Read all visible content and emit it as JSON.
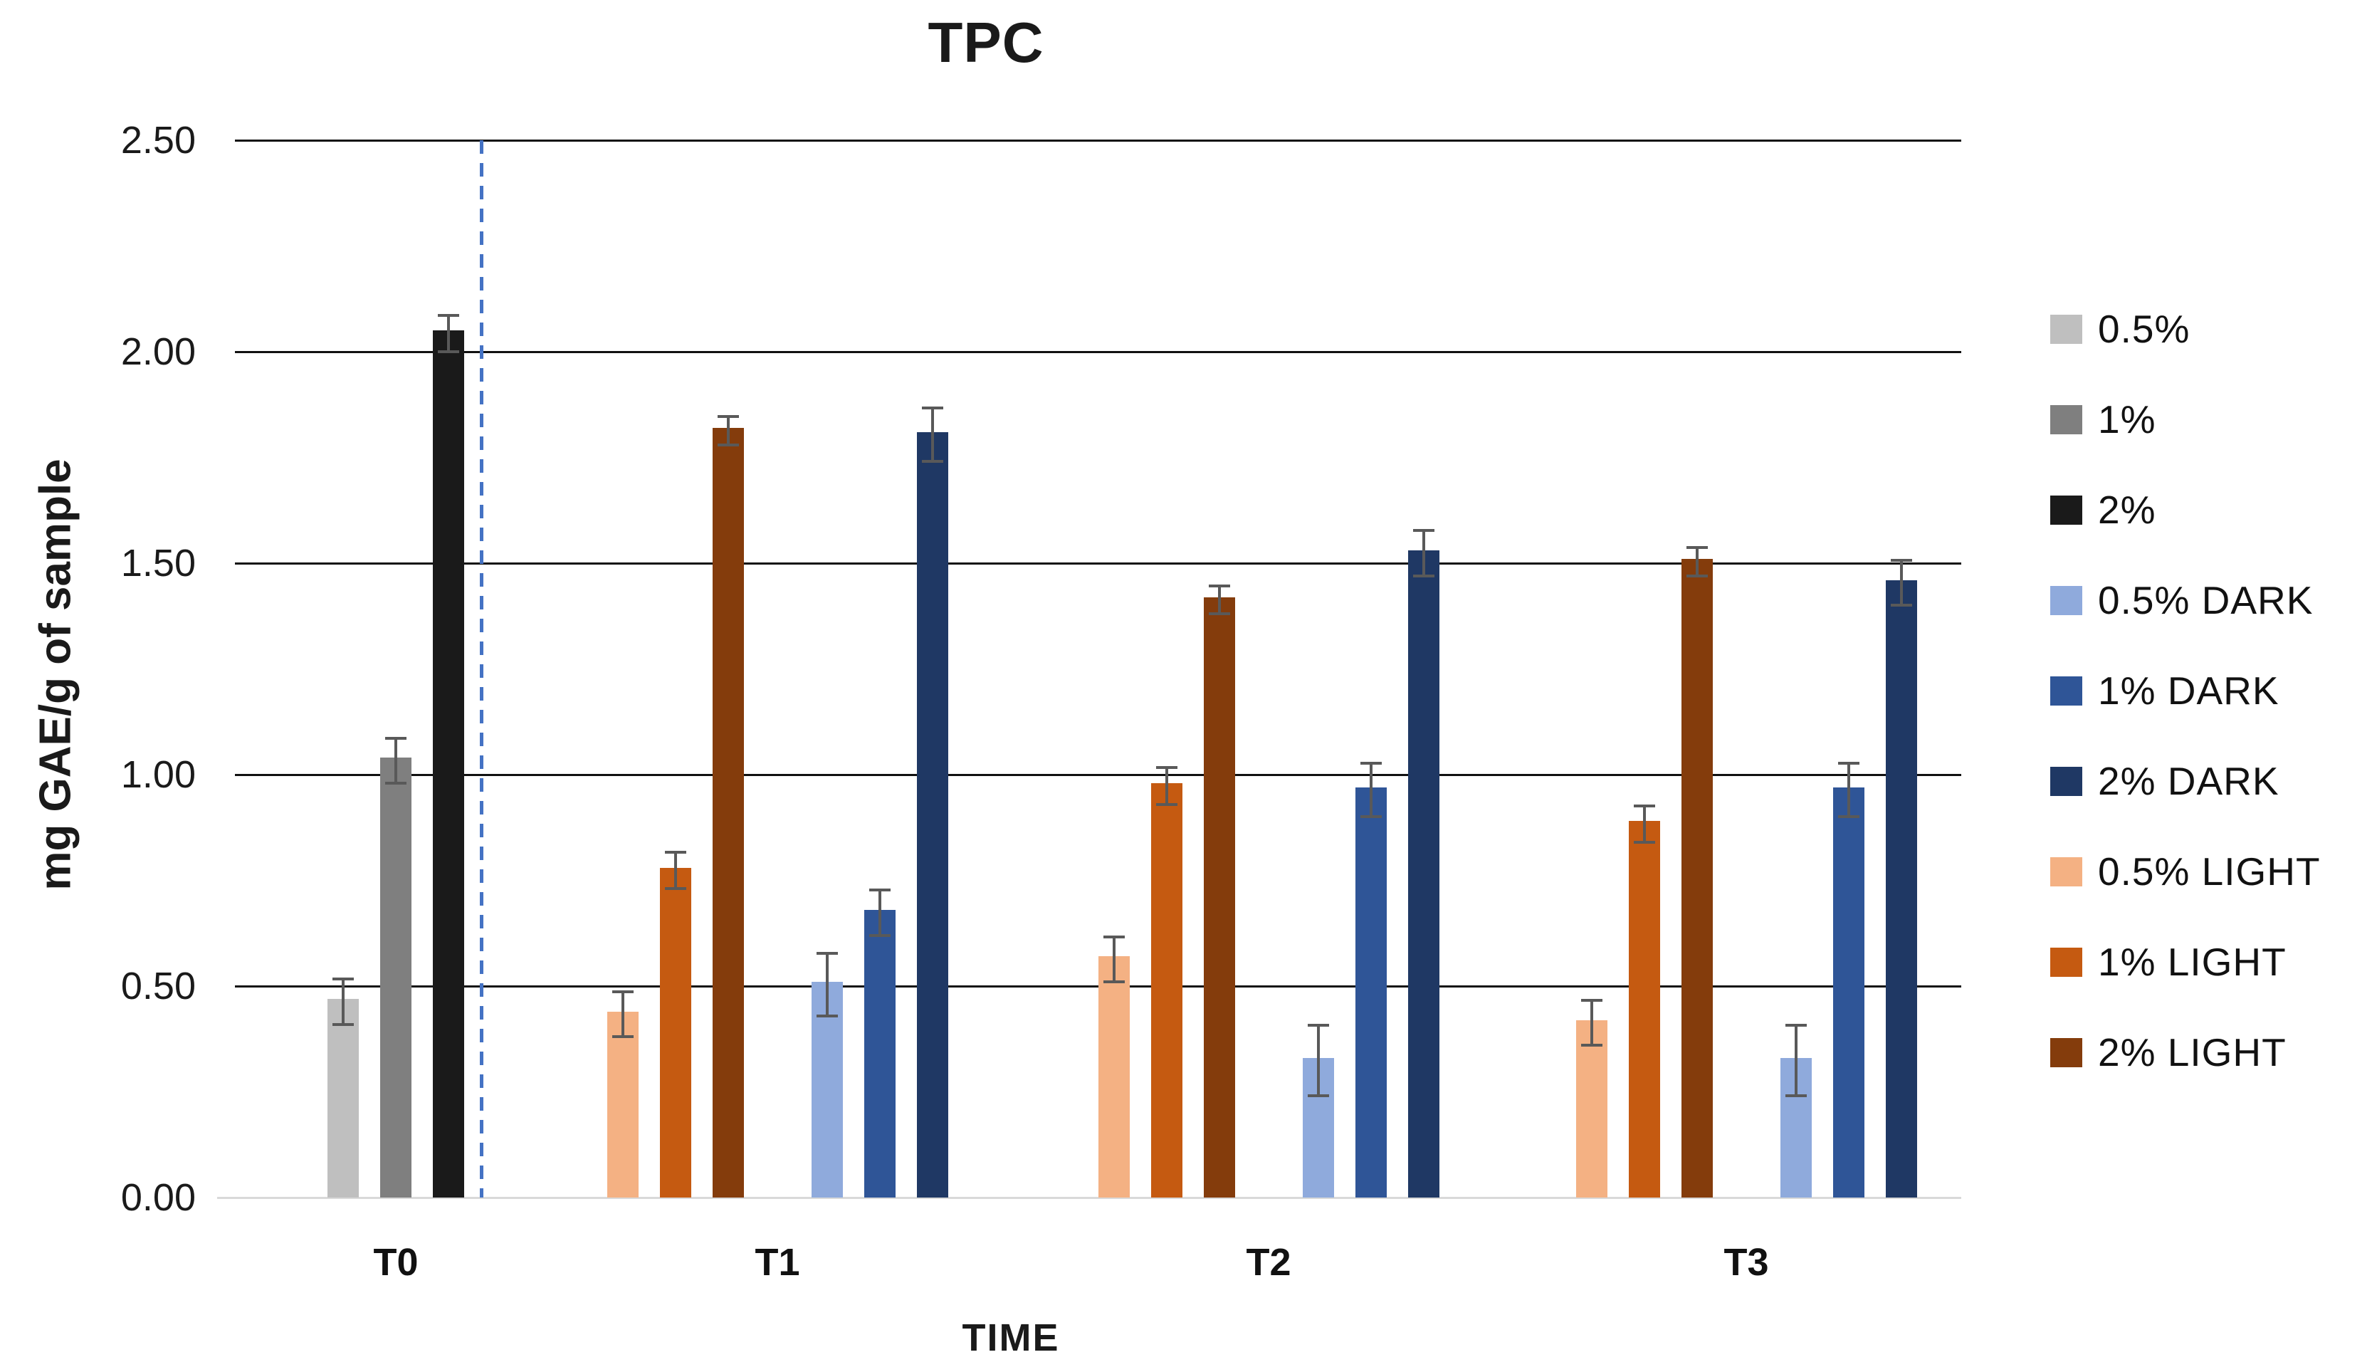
{
  "chart_data": {
    "type": "bar",
    "title": "TPC",
    "xlabel": "TIME",
    "ylabel": "mg GAE/g of sample",
    "ylim": [
      0,
      2.5
    ],
    "grid": "horizontal",
    "legend_position": "right",
    "yticks": [
      {
        "value": 0.0,
        "label": "0.00"
      },
      {
        "value": 0.5,
        "label": "0.50"
      },
      {
        "value": 1.0,
        "label": "1.00"
      },
      {
        "value": 1.5,
        "label": "1.50"
      },
      {
        "value": 2.0,
        "label": "2.00"
      },
      {
        "value": 2.5,
        "label": "2.50"
      }
    ],
    "categories": [
      "T0",
      "T1",
      "T2",
      "T3"
    ],
    "legend": [
      {
        "label": "0.5%",
        "color": "#BFBFBF",
        "pattern": "dots"
      },
      {
        "label": "1%",
        "color": "#7F7F7F",
        "pattern": "none"
      },
      {
        "label": "2%",
        "color": "#1A1A1A",
        "pattern": "weave"
      },
      {
        "label": "0.5% DARK",
        "color": "#8FAADC",
        "pattern": "none"
      },
      {
        "label": "1% DARK",
        "color": "#2F5597",
        "pattern": "none"
      },
      {
        "label": "2% DARK",
        "color": "#1F3864",
        "pattern": "none"
      },
      {
        "label": "0.5% LIGHT",
        "color": "#F4B183",
        "pattern": "none"
      },
      {
        "label": "1% LIGHT",
        "color": "#C55A11",
        "pattern": "none"
      },
      {
        "label": "2% LIGHT",
        "color": "#843C0C",
        "pattern": "none"
      }
    ],
    "groups": [
      {
        "label": "T0",
        "clusters": [
          [
            {
              "series": "0.5%",
              "value": 0.47,
              "error": 0.05
            },
            {
              "series": "1%",
              "value": 1.04,
              "error": 0.05
            },
            {
              "series": "2%",
              "value": 2.05,
              "error": 0.04
            }
          ]
        ]
      },
      {
        "label": "T1",
        "clusters": [
          [
            {
              "series": "0.5% LIGHT",
              "value": 0.44,
              "error": 0.05
            },
            {
              "series": "1% LIGHT",
              "value": 0.78,
              "error": 0.04
            },
            {
              "series": "2% LIGHT",
              "value": 1.82,
              "error": 0.03
            }
          ],
          [
            {
              "series": "0.5% DARK",
              "value": 0.51,
              "error": 0.07
            },
            {
              "series": "1% DARK",
              "value": 0.68,
              "error": 0.05
            },
            {
              "series": "2% DARK",
              "value": 1.81,
              "error": 0.06
            }
          ]
        ]
      },
      {
        "label": "T2",
        "clusters": [
          [
            {
              "series": "0.5% LIGHT",
              "value": 0.57,
              "error": 0.05
            },
            {
              "series": "1% LIGHT",
              "value": 0.98,
              "error": 0.04
            },
            {
              "series": "2% LIGHT",
              "value": 1.42,
              "error": 0.03
            }
          ],
          [
            {
              "series": "0.5% DARK",
              "value": 0.33,
              "error": 0.08
            },
            {
              "series": "1% DARK",
              "value": 0.97,
              "error": 0.06
            },
            {
              "series": "2% DARK",
              "value": 1.53,
              "error": 0.05
            }
          ]
        ]
      },
      {
        "label": "T3",
        "clusters": [
          [
            {
              "series": "0.5% LIGHT",
              "value": 0.42,
              "error": 0.05
            },
            {
              "series": "1% LIGHT",
              "value": 0.89,
              "error": 0.04
            },
            {
              "series": "2% LIGHT",
              "value": 1.51,
              "error": 0.03
            }
          ],
          [
            {
              "series": "0.5% DARK",
              "value": 0.33,
              "error": 0.08
            },
            {
              "series": "1% DARK",
              "value": 0.97,
              "error": 0.06
            },
            {
              "series": "2% DARK",
              "value": 1.46,
              "error": 0.05
            }
          ]
        ]
      }
    ],
    "separator": {
      "after_category": "T0",
      "color": "#4472C4",
      "style": "dashed"
    },
    "error_bar_color": "#595959",
    "gridline_color": "#111111",
    "baseline_color": "#D9D9D9"
  }
}
